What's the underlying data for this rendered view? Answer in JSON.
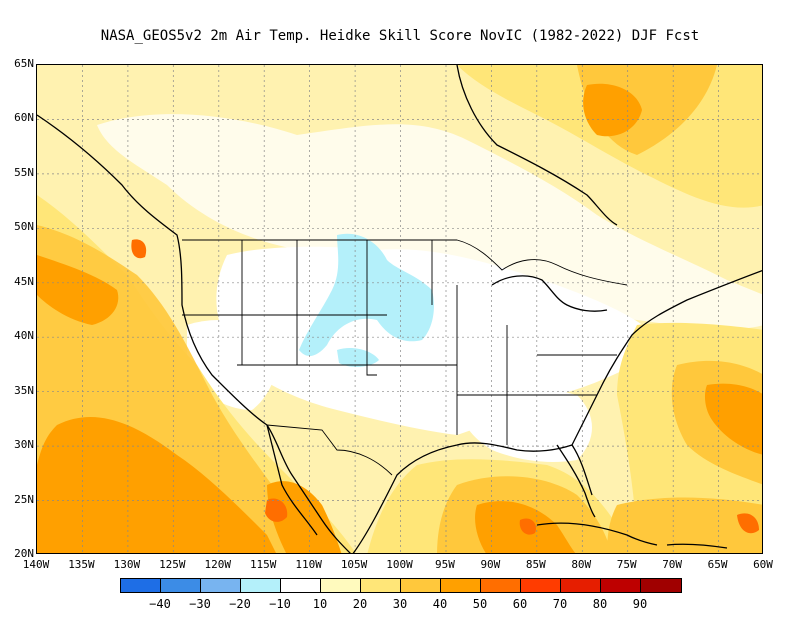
{
  "title": "NASA_GEOS5v2  2m Air Temp. Heidke Skill Score NovIC (1982-2022) DJF Fcst",
  "lat_labels": [
    "65N",
    "60N",
    "55N",
    "50N",
    "45N",
    "40N",
    "35N",
    "30N",
    "25N",
    "20N"
  ],
  "lon_labels": [
    "140W",
    "135W",
    "130W",
    "125W",
    "120W",
    "115W",
    "110W",
    "105W",
    "100W",
    "95W",
    "90W",
    "85W",
    "80W",
    "75W",
    "70W",
    "65W",
    "60W"
  ],
  "colorbar": {
    "colors": [
      "#1e6ee6",
      "#3c8ce6",
      "#78b4f0",
      "#b4f0fa",
      "#ffffff",
      "#fffabe",
      "#ffe678",
      "#ffc83c",
      "#ffa000",
      "#ff6e00",
      "#ff3c00",
      "#e61e00",
      "#be0000",
      "#a00000"
    ],
    "ticks": [
      "−40",
      "−30",
      "−20",
      "−10",
      "10",
      "20",
      "30",
      "40",
      "50",
      "60",
      "70",
      "80",
      "90"
    ]
  },
  "map_colors": {
    "background": "#fffbd9",
    "white_region": "#ffffff",
    "light_yellow": "#fff0a8",
    "yellow": "#ffe678",
    "orange_light": "#ffc83c",
    "orange": "#ffa000",
    "orange_dark": "#ff6e00",
    "light_blue": "#b4f0fa"
  }
}
